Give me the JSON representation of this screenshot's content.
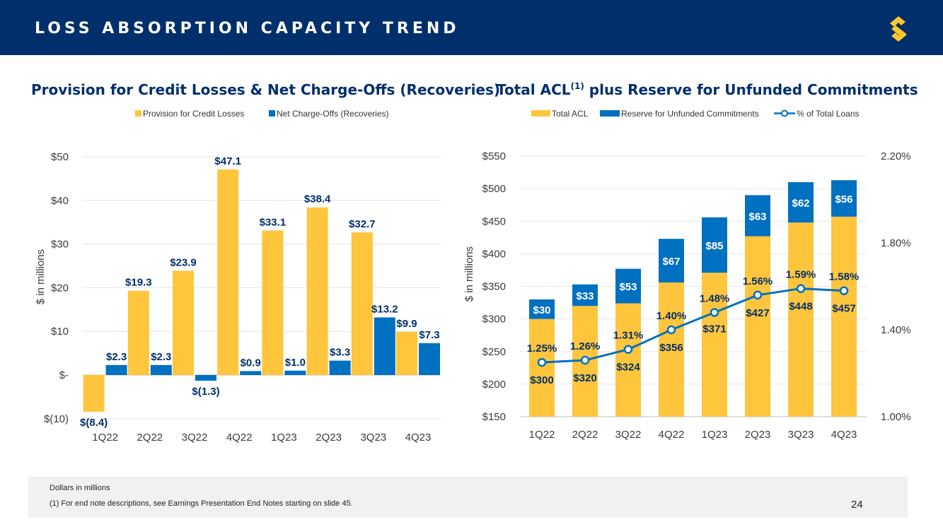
{
  "header": {
    "title": "LOSS ABSORPTION CAPACITY TREND",
    "logo_icon": "synovus-s-logo-icon",
    "background": "#002f6c",
    "logo_color": "#ffc72c"
  },
  "colors": {
    "gold": "#ffc53d",
    "blue": "#0070c0",
    "navy": "#002f6c",
    "axis_text": "#3a3a3a"
  },
  "chart_data": [
    {
      "type": "bar",
      "title": "Provision for Credit Losses & Net Charge-Offs (Recoveries)",
      "ylabel": "$ in millions",
      "xlabel": "",
      "categories": [
        "1Q22",
        "2Q22",
        "3Q22",
        "4Q22",
        "1Q23",
        "2Q23",
        "3Q23",
        "4Q23"
      ],
      "ylim": [
        -10,
        50
      ],
      "yticks": [
        -10,
        0,
        10,
        20,
        30,
        40,
        50
      ],
      "ytick_labels": [
        "$(10)",
        "$-",
        "$10",
        "$20",
        "$30",
        "$40",
        "$50"
      ],
      "grid": true,
      "legend_position": "top",
      "series": [
        {
          "name": "Provision for Credit Losses",
          "color": "#ffc53d",
          "values": [
            -8.4,
            19.3,
            23.9,
            47.1,
            33.1,
            38.4,
            32.7,
            9.9
          ],
          "labels": [
            "$(8.4)",
            "$19.3",
            "$23.9",
            "$47.1",
            "$33.1",
            "$38.4",
            "$32.7",
            "$9.9"
          ]
        },
        {
          "name": "Net Charge-Offs (Recoveries)",
          "color": "#0070c0",
          "values": [
            2.3,
            2.3,
            -1.3,
            0.9,
            1.0,
            3.3,
            13.2,
            7.3
          ],
          "labels": [
            "$2.3",
            "$2.3",
            "$(1.3)",
            "$0.9",
            "$1.0",
            "$3.3",
            "$13.2",
            "$7.3"
          ]
        }
      ]
    },
    {
      "type": "bar",
      "stacked": true,
      "title_main": "Total ACL",
      "title_sup": "(1)",
      "title_rest": " plus Reserve for Unfunded Commitments",
      "ylabel": "$ in millions",
      "xlabel": "",
      "categories": [
        "1Q22",
        "2Q22",
        "3Q22",
        "4Q22",
        "1Q23",
        "2Q23",
        "3Q23",
        "4Q23"
      ],
      "ylim": [
        150,
        550
      ],
      "yticks": [
        150,
        200,
        250,
        300,
        350,
        400,
        450,
        500,
        550
      ],
      "ytick_labels": [
        "$150",
        "$200",
        "$250",
        "$300",
        "$350",
        "$400",
        "$450",
        "$500",
        "$550"
      ],
      "y2lim": [
        1.0,
        2.2
      ],
      "y2ticks": [
        1.0,
        1.4,
        1.8,
        2.2
      ],
      "y2tick_labels": [
        "1.00%",
        "1.40%",
        "1.80%",
        "2.20%"
      ],
      "grid": true,
      "legend_position": "top",
      "series": [
        {
          "name": "Total ACL",
          "color": "#ffc53d",
          "values": [
            300,
            320,
            324,
            356,
            371,
            427,
            448,
            457
          ],
          "labels": [
            "$300",
            "$320",
            "$324",
            "$356",
            "$371",
            "$427",
            "$448",
            "$457"
          ]
        },
        {
          "name": "Reserve for Unfunded Commitments",
          "color": "#0070c0",
          "values": [
            30,
            33,
            53,
            67,
            85,
            63,
            62,
            56
          ],
          "labels": [
            "$30",
            "$33",
            "$53",
            "$67",
            "$85",
            "$63",
            "$62",
            "$56"
          ]
        },
        {
          "name": "% of Total Loans",
          "color": "#0070c0",
          "type": "line",
          "axis": "y2",
          "values": [
            1.25,
            1.26,
            1.31,
            1.4,
            1.48,
            1.56,
            1.59,
            1.58
          ],
          "labels": [
            "1.25%",
            "1.26%",
            "1.31%",
            "1.40%",
            "1.48%",
            "1.56%",
            "1.59%",
            "1.58%"
          ]
        }
      ]
    }
  ],
  "footer": {
    "line1": "Dollars in millions",
    "line2": "(1)   For end note descriptions, see Earnings Presentation End Notes starting on slide 45.",
    "page_number": "24"
  }
}
